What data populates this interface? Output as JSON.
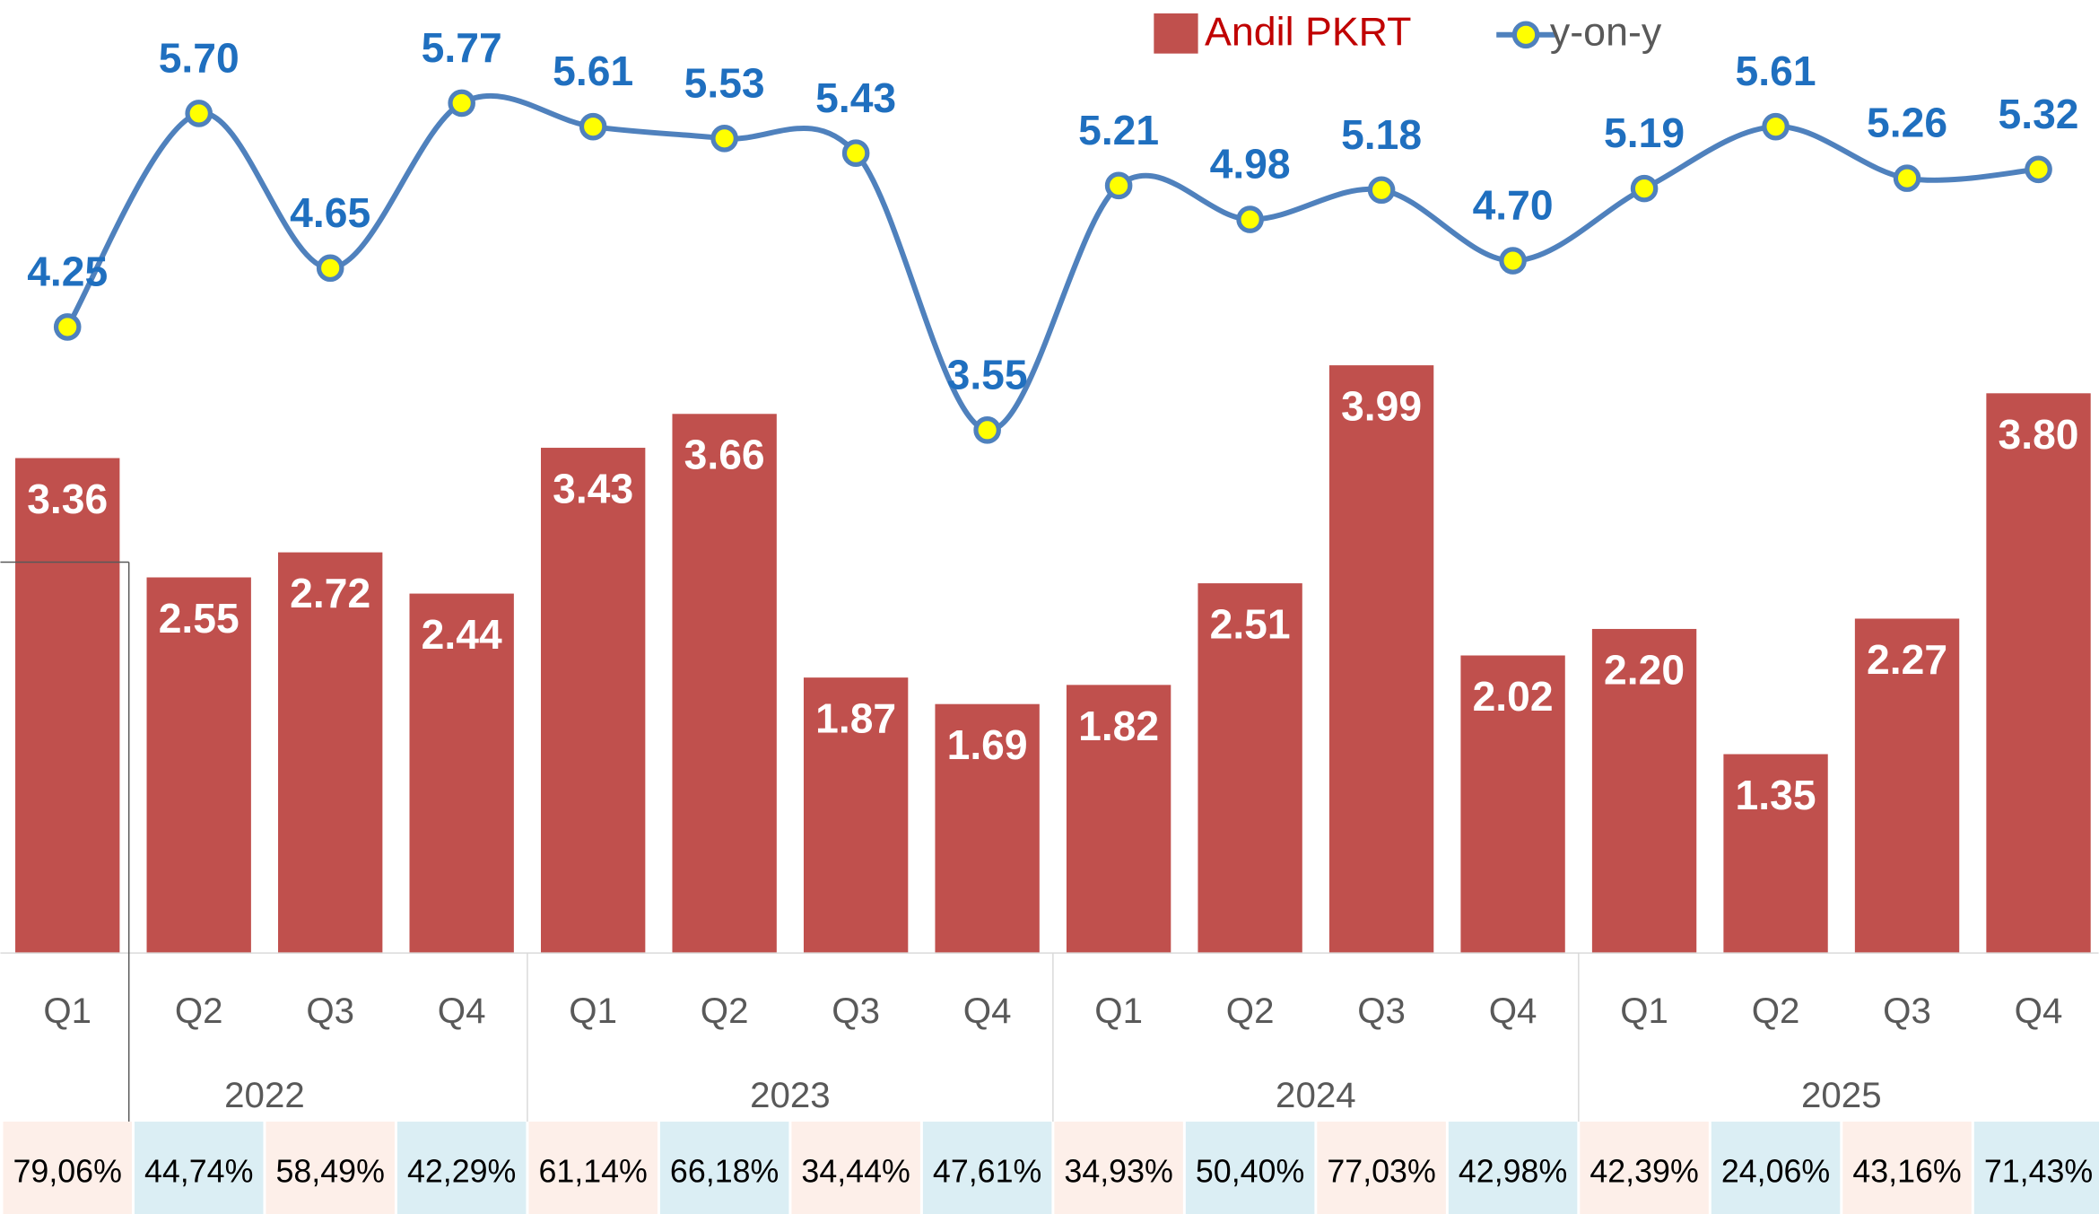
{
  "chart_data": {
    "type": "bar-line",
    "categories": [
      "Q1",
      "Q2",
      "Q3",
      "Q4",
      "Q1",
      "Q2",
      "Q3",
      "Q4",
      "Q1",
      "Q2",
      "Q3",
      "Q4",
      "Q1",
      "Q2",
      "Q3",
      "Q4"
    ],
    "groups": [
      "2022",
      "2023",
      "2024",
      "2025"
    ],
    "ylim": [
      0,
      6.47
    ],
    "series": [
      {
        "name": "Andil PKRT",
        "type": "bar",
        "color": "#c0504d",
        "values": [
          3.36,
          2.55,
          2.72,
          2.44,
          3.43,
          3.66,
          1.87,
          1.69,
          1.82,
          2.51,
          3.99,
          2.02,
          2.2,
          1.35,
          2.27,
          3.8
        ],
        "value_labels": [
          "3.36",
          "2.55",
          "2.72",
          "2.44",
          "3.43",
          "3.66",
          "1.87",
          "1.69",
          "1.82",
          "2.51",
          "3.99",
          "2.02",
          "2.20",
          "1.35",
          "2.27",
          "3.80"
        ]
      },
      {
        "name": "y-on-y",
        "type": "line",
        "color": "#4f81bd",
        "marker_color": "#ffff00",
        "values": [
          4.25,
          5.7,
          4.65,
          5.77,
          5.61,
          5.53,
          5.43,
          3.55,
          5.21,
          4.98,
          5.18,
          4.7,
          5.19,
          5.61,
          5.26,
          5.32
        ],
        "value_labels": [
          "4.25",
          "5.70",
          "4.65",
          "5.77",
          "5.61",
          "5.53",
          "5.43",
          "3.55",
          "5.21",
          "4.98",
          "5.18",
          "4.70",
          "5.19",
          "5.61",
          "5.26",
          "5.32"
        ]
      }
    ],
    "shares": [
      "79,06%",
      "44,74%",
      "58,49%",
      "42,29%",
      "61,14%",
      "66,18%",
      "34,44%",
      "47,61%",
      "34,93%",
      "50,40%",
      "77,03%",
      "42,98%",
      "42,39%",
      "24,06%",
      "43,16%",
      "71,43%"
    ]
  }
}
